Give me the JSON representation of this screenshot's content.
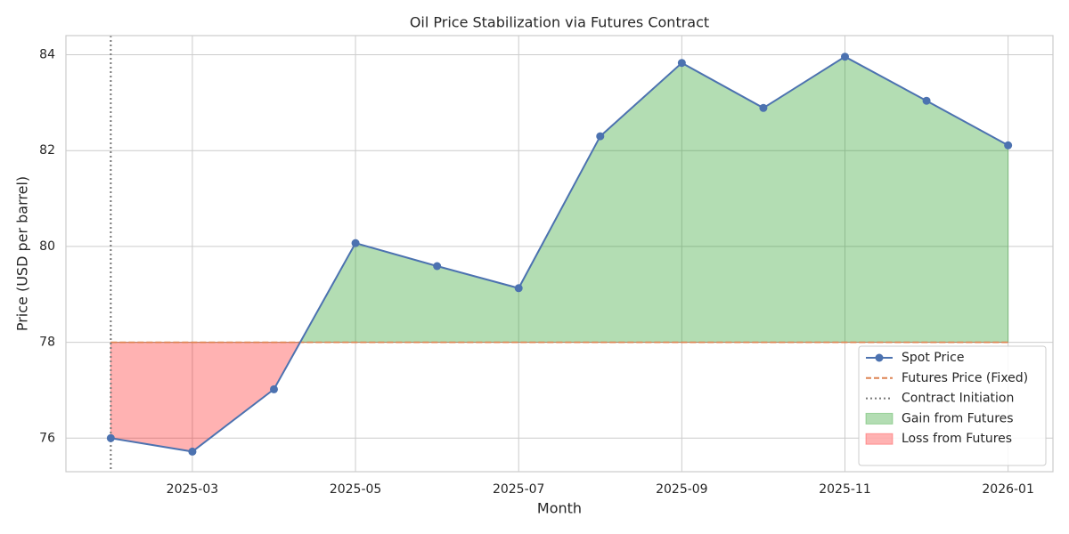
{
  "chart_data": {
    "type": "line",
    "title": "Oil Price Stabilization via Futures Contract",
    "xlabel": "Month",
    "ylabel": "Price (USD per barrel)",
    "x": [
      "2025-02",
      "2025-03",
      "2025-04",
      "2025-05",
      "2025-06",
      "2025-07",
      "2025-08",
      "2025-09",
      "2025-10",
      "2025-11",
      "2025-12",
      "2026-01"
    ],
    "series": [
      {
        "name": "Spot Price",
        "color": "#4c72b0",
        "values": [
          76.0,
          75.72,
          77.02,
          80.07,
          79.59,
          79.13,
          82.3,
          83.83,
          82.89,
          83.96,
          83.04,
          82.11
        ]
      }
    ],
    "futures": {
      "name": "Futures Price (Fixed)",
      "color": "#dd8452",
      "value": 78
    },
    "initiation": {
      "name": "Contract Initiation",
      "color": "#777777",
      "x": "2025-02"
    },
    "fills": [
      {
        "name": "Gain from Futures",
        "color": "#2ca02c",
        "opacity": 0.36,
        "where": "above"
      },
      {
        "name": "Loss from Futures",
        "color": "#ff0000",
        "opacity": 0.3,
        "where": "below"
      }
    ],
    "ylim": [
      75.3,
      84.4
    ],
    "yticks": [
      76,
      78,
      80,
      82,
      84
    ],
    "xticks": [
      "2025-03",
      "2025-05",
      "2025-07",
      "2025-09",
      "2025-11",
      "2026-01"
    ],
    "grid": true,
    "legend": "lower right"
  }
}
